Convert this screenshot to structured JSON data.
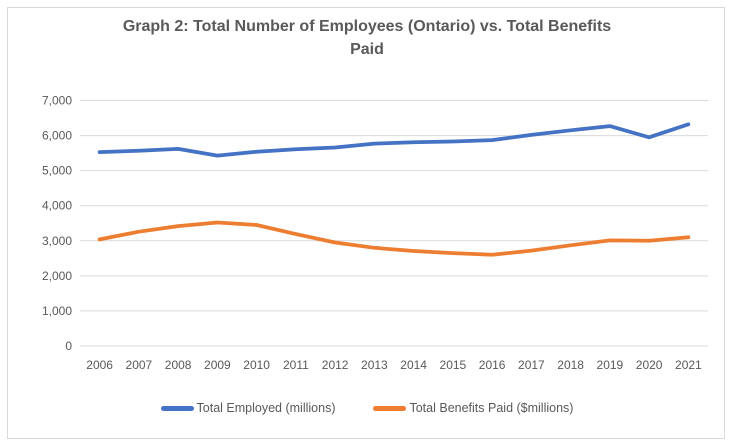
{
  "chart_data": {
    "type": "line",
    "title": "Graph 2: Total Number of Employees (Ontario) vs. Total Benefits Paid",
    "x": [
      2006,
      2007,
      2008,
      2009,
      2010,
      2011,
      2012,
      2013,
      2014,
      2015,
      2016,
      2017,
      2018,
      2019,
      2020,
      2021
    ],
    "series": [
      {
        "name": "Total Employed (millions)",
        "color": "#4472C4",
        "values": [
          5530,
          5570,
          5620,
          5430,
          5540,
          5610,
          5660,
          5770,
          5810,
          5830,
          5870,
          6020,
          6150,
          6270,
          5950,
          6320
        ]
      },
      {
        "name": "Total Benefits Paid ($millions)",
        "color": "#ED7D31",
        "values": [
          3040,
          3260,
          3420,
          3520,
          3450,
          3190,
          2950,
          2800,
          2710,
          2650,
          2600,
          2720,
          2870,
          3010,
          3000,
          3100
        ]
      }
    ],
    "ylim": [
      0,
      7000
    ],
    "ytick_interval": 1000,
    "ytick_labels": [
      "0",
      "1,000",
      "2,000",
      "3,000",
      "4,000",
      "5,000",
      "6,000",
      "7,000"
    ],
    "grid": "horizontal",
    "legend_position": "bottom",
    "axis_text_color": "#595959",
    "gridline_color": "#D9D9D9",
    "frame_border_color": "#D9D9D9",
    "background_color": "#FFFFFF"
  }
}
